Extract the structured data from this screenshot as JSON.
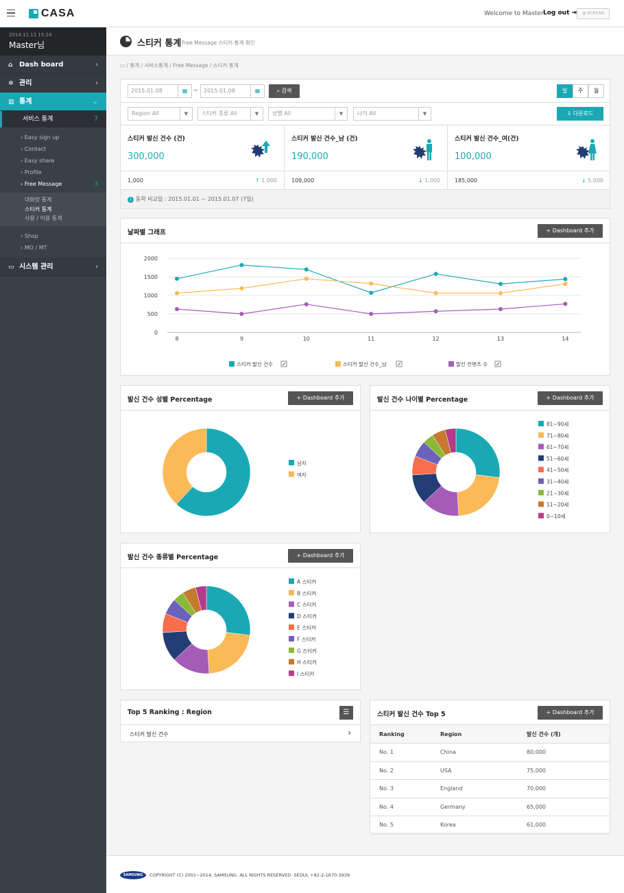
{
  "header": {
    "app_name": "CASA",
    "welcome": "Welcome to Master",
    "logout": "Log out",
    "language": "KOREAN"
  },
  "sidebar": {
    "datetime": "2014.11.12 15:24",
    "user": "Master님",
    "nav": [
      {
        "label": "Dash board",
        "icon": "home-icon"
      },
      {
        "label": "관리",
        "icon": "gear-icon"
      },
      {
        "label": "통계",
        "icon": "bar-chart-icon"
      },
      {
        "label": "시스템 관리",
        "icon": "monitor-icon"
      }
    ],
    "service_stats": {
      "label": "서비스 통계",
      "count": "7"
    },
    "menu1": [
      {
        "label": "Easy sign up"
      },
      {
        "label": "Contact"
      },
      {
        "label": "Easy share"
      },
      {
        "label": "Profile"
      },
      {
        "label": "Free Message",
        "count": "3"
      }
    ],
    "menu2": [
      {
        "label": "대화방 통계"
      },
      {
        "label": "스티커 통계"
      },
      {
        "label": "사용 / 이용 통계"
      }
    ],
    "menu3": [
      {
        "label": "Shop"
      },
      {
        "label": "MO / MT"
      }
    ]
  },
  "page": {
    "title": "스티커 통계",
    "subtitle": "Free Message 스티커 통계 확인",
    "breadcrumb": "통계  /  서비스통계  /  Free Message  /  스티커 통계"
  },
  "filters": {
    "date_from": "2015.01.08",
    "date_to": "2015.01.08",
    "tilde": "~",
    "search": "검색",
    "periods": [
      "일",
      "주",
      "월"
    ],
    "selects": [
      "Region All",
      "스티커 종류 All",
      "성별 All",
      "나이 All"
    ],
    "download": "다운로드"
  },
  "stats": [
    {
      "label": "스티커 발신 건수 (건)",
      "value": "300,000",
      "base": "1,000",
      "delta": "1,000",
      "dir": "↑"
    },
    {
      "label": "스티커 발신 건수_남 (건)",
      "value": "190,000",
      "base": "109,000",
      "delta": "1,000",
      "dir": "↓"
    },
    {
      "label": "스티커 발신 건수_여(건)",
      "value": "100,000",
      "base": "185,000",
      "delta": "5,000",
      "dir": "↓"
    }
  ],
  "compare_note": "동략 비교일 : 2015.01.01 ~ 2015.01.07 (7일)",
  "add_dashboard": "Dashboard 추가",
  "line_card": {
    "title": "날짜별 그래프"
  },
  "chart_data": [
    {
      "type": "line",
      "x": [
        8,
        9,
        10,
        11,
        12,
        13,
        14
      ],
      "ylim": [
        0,
        2000
      ],
      "yticks": [
        0,
        500,
        1000,
        1500,
        2000
      ],
      "series": [
        {
          "name": "스티커 발신 건수",
          "color": "#1aa9b4",
          "values": [
            1450,
            1820,
            1700,
            1070,
            1580,
            1310,
            1440
          ]
        },
        {
          "name": "스티커 발신 건수_남",
          "color": "#fbb957",
          "values": [
            1060,
            1190,
            1450,
            1320,
            1060,
            1060,
            1310
          ]
        },
        {
          "name": "발신 컨텐츠 수",
          "color": "#a55cb9",
          "values": [
            630,
            500,
            760,
            500,
            570,
            630,
            770
          ]
        }
      ]
    },
    {
      "type": "pie",
      "title": "발신 건수 성별 Percentage",
      "labels": [
        "남자",
        "여자"
      ],
      "values": [
        62,
        38
      ],
      "colors": [
        "#1aa9b4",
        "#fbb957"
      ]
    },
    {
      "type": "pie",
      "title": "발신 건수 나이별 Percentage",
      "labels": [
        "81~90세",
        "71~80세",
        "61~70세",
        "51~60세",
        "41~50세",
        "31~40세",
        "21~30세",
        "11~20세",
        "0~10세"
      ],
      "values": [
        27,
        22,
        14,
        11,
        7,
        6,
        4,
        5,
        4
      ],
      "colors": [
        "#1aa9b4",
        "#fbb957",
        "#a55cb9",
        "#223d73",
        "#f96e4c",
        "#6d62bb",
        "#8cb83a",
        "#c67a2d",
        "#b53b8a"
      ]
    },
    {
      "type": "pie",
      "title": "발신 건수 종류별 Percentage",
      "labels": [
        "A 스티커",
        "B 스티커",
        "C 스티커",
        "D 스티커",
        "E 스티커",
        "F 스티커",
        "G 스티커",
        "H 스티커",
        "I 스티커"
      ],
      "values": [
        27,
        22,
        14,
        11,
        7,
        6,
        4,
        5,
        4
      ],
      "colors": [
        "#1aa9b4",
        "#fbb957",
        "#a55cb9",
        "#223d73",
        "#f96e4c",
        "#6d62bb",
        "#8cb83a",
        "#c67a2d",
        "#b53b8a"
      ]
    }
  ],
  "ranking": {
    "title": "Top 5 Ranking : Region",
    "item": "스티커 발신 건수"
  },
  "top5": {
    "title": "스티커 발신 건수 Top 5",
    "columns": [
      "Ranking",
      "Region",
      "발신 건수 (개)"
    ],
    "rows": [
      [
        "No. 1",
        "China",
        "80,000"
      ],
      [
        "No. 2",
        "USA",
        "75,000"
      ],
      [
        "No. 3",
        "England",
        "70,000"
      ],
      [
        "No. 4",
        "Germany",
        "65,000"
      ],
      [
        "No. 5",
        "Korea",
        "61,000"
      ]
    ]
  },
  "footer": {
    "brand": "SAMSUNG",
    "copyright": "COPYRIGHT (C) 2001~2014, SAMSUNG. ALL RIGHTS RESERVED. SEOUL +82-2-1670-3939"
  }
}
